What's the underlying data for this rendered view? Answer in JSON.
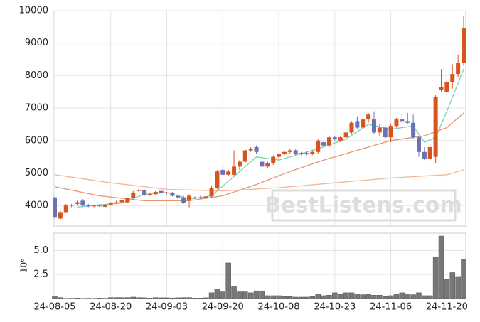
{
  "chart_data": {
    "type": "candlestick",
    "watermark": "BestListens.com",
    "categories": [
      "24-08-05",
      null,
      null,
      null,
      null,
      null,
      null,
      null,
      null,
      null,
      "24-08-20",
      null,
      null,
      null,
      null,
      null,
      null,
      null,
      null,
      null,
      "24-09-03",
      null,
      null,
      null,
      null,
      null,
      null,
      null,
      null,
      null,
      "24-09-20",
      null,
      null,
      null,
      null,
      null,
      null,
      null,
      null,
      null,
      "24-10-08",
      null,
      null,
      null,
      null,
      null,
      null,
      null,
      null,
      null,
      "24-10-23",
      null,
      null,
      null,
      null,
      null,
      null,
      null,
      null,
      null,
      "24-11-06",
      null,
      null,
      null,
      null,
      null,
      null,
      null,
      null,
      null,
      "24-11-20",
      null,
      null,
      null
    ],
    "open": [
      4250,
      3600,
      3800,
      4000,
      4050,
      4150,
      4000,
      3980,
      4000,
      3960,
      4030,
      4080,
      4100,
      4100,
      4230,
      4450,
      4480,
      4320,
      4350,
      4450,
      4380,
      4380,
      4300,
      4250,
      4150,
      4250,
      4250,
      4230,
      4280,
      4550,
      5100,
      4950,
      4950,
      5200,
      5350,
      5700,
      5800,
      5350,
      5200,
      5300,
      5500,
      5600,
      5650,
      5700,
      5580,
      5620,
      5600,
      5650,
      5950,
      5850,
      6100,
      6000,
      6100,
      6250,
      6600,
      6400,
      6650,
      6650,
      6250,
      6400,
      6100,
      6450,
      6650,
      6600,
      6550,
      6100,
      5650,
      5450,
      5500,
      7550,
      7500,
      7800,
      8050,
      8400
    ],
    "high": [
      4280,
      3850,
      4050,
      4050,
      4150,
      4200,
      4050,
      4020,
      4050,
      4050,
      4100,
      4150,
      4200,
      4250,
      4450,
      4520,
      4500,
      4380,
      4450,
      4500,
      4420,
      4420,
      4350,
      4300,
      4350,
      4280,
      4300,
      4300,
      4600,
      5100,
      5200,
      5100,
      5700,
      5400,
      5750,
      5800,
      5850,
      5400,
      5350,
      5550,
      5600,
      5700,
      5750,
      5750,
      5650,
      5650,
      5700,
      6050,
      6000,
      6150,
      6150,
      6150,
      6300,
      6600,
      6750,
      6700,
      6850,
      6900,
      6500,
      6450,
      6500,
      6700,
      6800,
      6850,
      6800,
      6150,
      5800,
      5900,
      7400,
      8200,
      7850,
      8350,
      8650,
      9850
    ],
    "low": [
      3600,
      3550,
      3780,
      3950,
      4000,
      3980,
      3950,
      3950,
      3960,
      3940,
      4000,
      4050,
      4080,
      4080,
      4200,
      4420,
      4300,
      4300,
      4330,
      4350,
      4350,
      4280,
      4200,
      4050,
      3950,
      4200,
      4200,
      4220,
      4250,
      4500,
      4900,
      4900,
      4900,
      5100,
      5300,
      5650,
      5600,
      5150,
      5150,
      5250,
      5450,
      5550,
      5600,
      5550,
      5550,
      5550,
      5550,
      5600,
      5800,
      5800,
      6000,
      5950,
      6050,
      6200,
      6350,
      6350,
      6550,
      6200,
      6150,
      6050,
      5950,
      6400,
      6500,
      6500,
      6050,
      5500,
      5400,
      5400,
      5300,
      7500,
      7400,
      7600,
      7950,
      8300
    ],
    "close": [
      3650,
      3800,
      4000,
      4020,
      4100,
      4000,
      3980,
      4000,
      3980,
      4030,
      4080,
      4100,
      4180,
      4230,
      4400,
      4480,
      4320,
      4350,
      4420,
      4380,
      4400,
      4300,
      4250,
      4080,
      4300,
      4250,
      4230,
      4280,
      4550,
      5050,
      4950,
      5050,
      5200,
      5350,
      5700,
      5750,
      5650,
      5200,
      5300,
      5500,
      5580,
      5650,
      5700,
      5580,
      5620,
      5600,
      5650,
      6000,
      5850,
      6100,
      6050,
      6100,
      6250,
      6550,
      6400,
      6650,
      6800,
      6250,
      6400,
      6100,
      6450,
      6650,
      6600,
      6550,
      6100,
      5650,
      5450,
      5800,
      7350,
      7650,
      7800,
      8050,
      8400,
      9450
    ],
    "up_color": "#d9531e",
    "down_color": "#6c70b4",
    "ylim": [
      3370,
      10000
    ],
    "yticks": [
      4000,
      5000,
      6000,
      7000,
      8000,
      9000,
      10000
    ],
    "grid": true,
    "moving_averages": [
      {
        "color": "#7fd0b8",
        "x": [
          4,
          8,
          12,
          16,
          20,
          24,
          28,
          32,
          36,
          40,
          44,
          48,
          52,
          56,
          60,
          64,
          66,
          68,
          70,
          73
        ],
        "values": [
          3950,
          4020,
          4080,
          4350,
          4400,
          4200,
          4300,
          4900,
          5500,
          5400,
          5600,
          5800,
          6050,
          6500,
          6350,
          6450,
          5950,
          6100,
          6900,
          8200
        ]
      },
      {
        "color": "#e8956b",
        "x": [
          0,
          8,
          16,
          24,
          30,
          36,
          42,
          48,
          54,
          60,
          66,
          70,
          73
        ],
        "values": [
          4580,
          4300,
          4150,
          4150,
          4300,
          4650,
          5050,
          5400,
          5700,
          6000,
          6150,
          6400,
          6850
        ]
      },
      {
        "color": "#f0b898",
        "x": [
          0,
          10,
          20,
          30,
          40,
          50,
          60,
          70,
          73
        ],
        "values": [
          4950,
          4700,
          4500,
          4450,
          4550,
          4700,
          4850,
          4950,
          5100
        ]
      }
    ],
    "volume": {
      "label": "10⁶",
      "color": "#777777",
      "ylim": [
        0,
        6.8
      ],
      "yticks": [
        2.5,
        {
          "value": 5,
          "label": "5.0"
        }
      ],
      "values": [
        0.25,
        0.1,
        0.02,
        0.03,
        0.05,
        0.02,
        0.03,
        0.02,
        0.05,
        0.03,
        0.1,
        0.1,
        0.1,
        0.1,
        0.15,
        0.1,
        0.08,
        0.05,
        0.1,
        0.08,
        0.08,
        0.06,
        0.08,
        0.1,
        0.1,
        0.05,
        0.05,
        0.08,
        0.6,
        1.0,
        0.7,
        3.7,
        1.3,
        0.7,
        0.7,
        0.6,
        0.8,
        0.8,
        0.3,
        0.3,
        0.3,
        0.2,
        0.2,
        0.15,
        0.15,
        0.15,
        0.2,
        0.5,
        0.3,
        0.35,
        0.6,
        0.5,
        0.6,
        0.6,
        0.5,
        0.4,
        0.45,
        0.35,
        0.35,
        0.2,
        0.3,
        0.5,
        0.6,
        0.5,
        0.4,
        0.6,
        0.3,
        0.3,
        4.3,
        6.5,
        2.0,
        2.7,
        2.3,
        4.1
      ]
    }
  }
}
